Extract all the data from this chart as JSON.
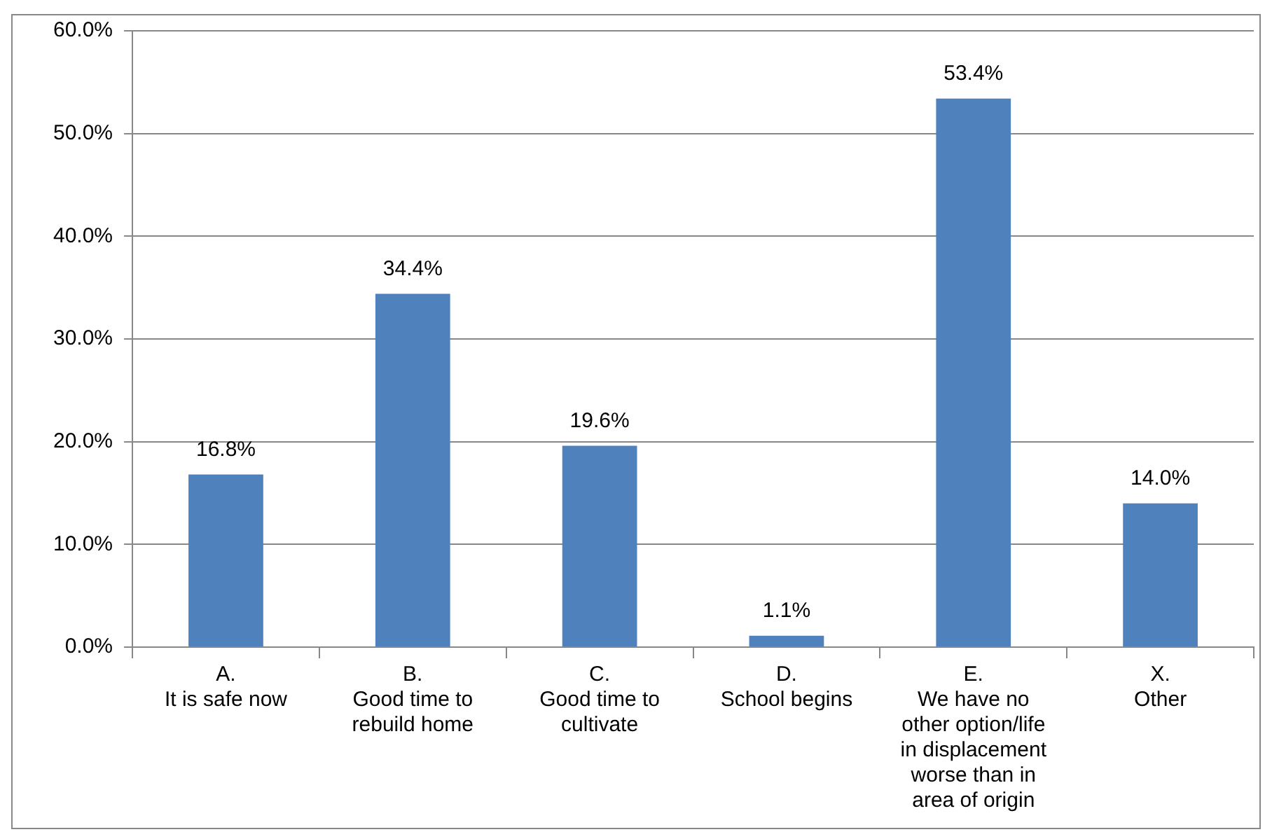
{
  "chart_data": {
    "type": "bar",
    "categories": [
      "A.\nIt is safe now",
      "B.\nGood time to\nrebuild home",
      "C.\nGood time to\ncultivate",
      "D.\nSchool begins",
      "E.\nWe have no\nother option/life\nin displacement\nworse than in\narea of origin",
      "X.\nOther"
    ],
    "values": [
      16.8,
      34.4,
      19.6,
      1.1,
      53.4,
      14.0
    ],
    "value_labels": [
      "16.8%",
      "34.4%",
      "19.6%",
      "1.1%",
      "53.4%",
      "14.0%"
    ],
    "color": "#4f81bd",
    "ylim": [
      0,
      60
    ],
    "yticks": [
      {
        "value": 0,
        "label": "0.0%"
      },
      {
        "value": 10,
        "label": "10.0%"
      },
      {
        "value": 20,
        "label": "20.0%"
      },
      {
        "value": 30,
        "label": "30.0%"
      },
      {
        "value": 40,
        "label": "40.0%"
      },
      {
        "value": 50,
        "label": "50.0%"
      },
      {
        "value": 60,
        "label": "60.0%"
      }
    ],
    "grid": "y",
    "legend": false
  }
}
